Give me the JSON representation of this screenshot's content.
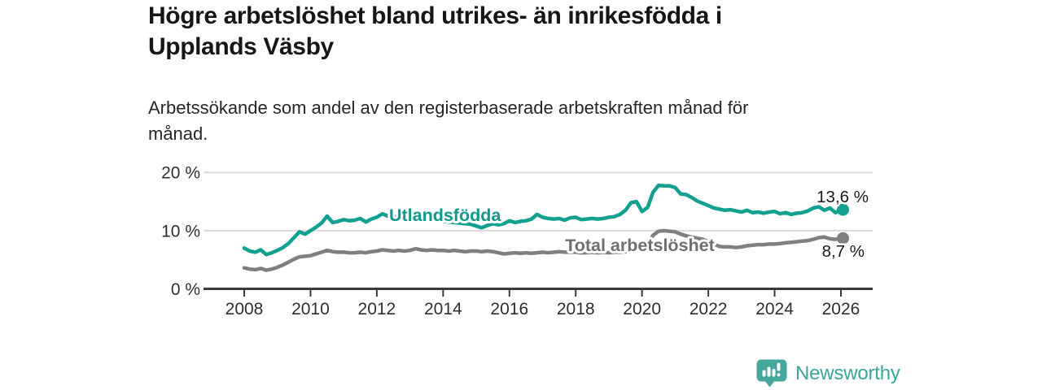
{
  "header": {
    "title_lines": [
      "Högre arbetslöshet bland utrikes- än inrikesfödda i",
      "Upplands Väsby"
    ],
    "subtitle_lines": [
      "Arbetssökande som andel av den registerbaserade arbetskraften månad för",
      "månad."
    ]
  },
  "chart_data": {
    "type": "line",
    "title": "Högre arbetslöshet bland utrikes- än inrikesfödda i Upplands Väsby",
    "subtitle": "Arbetssökande som andel av den registerbaserade arbetskraften månad för månad.",
    "grid": true,
    "legend_position": "inline-labels",
    "x_axis": {
      "min": 2008,
      "max": 2026,
      "ticks": [
        2008,
        2010,
        2012,
        2014,
        2016,
        2018,
        2020,
        2022,
        2024,
        2026
      ],
      "tick_labels": [
        "2008",
        "2010",
        "2012",
        "2014",
        "2016",
        "2018",
        "2020",
        "2022",
        "2024",
        "2026"
      ]
    },
    "y_axis": {
      "min": 0,
      "max": 20,
      "unit": "%",
      "ticks": [
        0,
        10,
        20
      ],
      "tick_labels": [
        "0 %",
        "10 %",
        "20 %"
      ]
    },
    "colors": {
      "foreign_born": "#12a08f",
      "foreign_born_label": "#0f9a8a",
      "total": "#7f7f7f",
      "total_label": "#6f6f6f",
      "grid": "#dadada",
      "axis": "#3a3a3a",
      "tick_text": "#2f2f2f",
      "end_label_text": "#1a1a1a",
      "brand_teal": "#3ba69b"
    },
    "series": [
      {
        "name": "Utlandsfödda",
        "color": "#12a08f",
        "label_color": "#0f9a8a",
        "end_label": "13,6 %",
        "end_value": 13.6,
        "label_pos": {
          "x": 2012.37,
          "y": 11.66
        },
        "x_start": 2008,
        "x_step": 0.166667,
        "values": [
          7.0,
          6.5,
          6.3,
          6.7,
          5.9,
          6.2,
          6.6,
          7.1,
          7.8,
          8.8,
          9.8,
          9.4,
          10.0,
          10.6,
          11.3,
          12.5,
          11.4,
          11.6,
          11.9,
          11.7,
          11.8,
          12.1,
          11.5,
          12.0,
          12.3,
          12.9,
          12.5,
          12.4,
          12.5,
          12.3,
          12.2,
          12.3,
          12.0,
          11.9,
          11.8,
          11.7,
          11.6,
          11.5,
          11.4,
          11.3,
          11.2,
          11.1,
          10.8,
          10.5,
          10.9,
          11.2,
          11.0,
          11.2,
          11.7,
          11.4,
          11.6,
          11.7,
          12.0,
          12.8,
          12.3,
          12.1,
          12.0,
          12.1,
          11.8,
          12.2,
          12.3,
          11.9,
          12.0,
          12.1,
          12.0,
          12.1,
          12.3,
          12.4,
          12.8,
          13.5,
          14.8,
          15.0,
          13.3,
          14.0,
          16.6,
          17.8,
          17.7,
          17.7,
          17.4,
          16.3,
          16.2,
          15.7,
          15.1,
          14.7,
          14.3,
          13.9,
          13.7,
          13.5,
          13.6,
          13.4,
          13.2,
          13.5,
          13.1,
          13.2,
          13.0,
          13.2,
          13.3,
          12.9,
          13.1,
          12.8,
          13.0,
          13.1,
          13.4,
          13.9,
          14.1,
          13.5,
          13.9,
          13.1,
          13.6
        ]
      },
      {
        "name": "Total arbetslöshet",
        "color": "#7f7f7f",
        "label_color": "#6f6f6f",
        "end_label": "8,7 %",
        "end_value": 8.7,
        "label_pos": {
          "x": 2017.68,
          "y": 6.49
        },
        "x_start": 2008,
        "x_step": 0.166667,
        "values": [
          3.6,
          3.4,
          3.3,
          3.5,
          3.2,
          3.4,
          3.7,
          4.1,
          4.6,
          5.1,
          5.5,
          5.6,
          5.7,
          6.0,
          6.3,
          6.6,
          6.4,
          6.3,
          6.3,
          6.2,
          6.2,
          6.3,
          6.2,
          6.4,
          6.5,
          6.7,
          6.6,
          6.5,
          6.6,
          6.5,
          6.6,
          6.9,
          6.7,
          6.6,
          6.7,
          6.6,
          6.6,
          6.5,
          6.6,
          6.5,
          6.4,
          6.5,
          6.5,
          6.4,
          6.5,
          6.4,
          6.2,
          6.0,
          6.1,
          6.2,
          6.1,
          6.2,
          6.1,
          6.2,
          6.3,
          6.2,
          6.3,
          6.4,
          6.3,
          6.3,
          6.3,
          6.2,
          6.2,
          6.3,
          6.2,
          6.3,
          6.2,
          6.3,
          6.3,
          6.4,
          6.5,
          6.6,
          6.8,
          7.5,
          9.2,
          9.9,
          10.0,
          9.9,
          9.8,
          9.4,
          9.1,
          8.9,
          8.7,
          8.5,
          8.1,
          7.7,
          7.3,
          7.2,
          7.2,
          7.1,
          7.2,
          7.4,
          7.5,
          7.6,
          7.6,
          7.7,
          7.7,
          7.8,
          7.9,
          8.0,
          8.1,
          8.2,
          8.3,
          8.5,
          8.8,
          8.9,
          8.6,
          8.5,
          8.7
        ]
      }
    ]
  },
  "footer": {
    "brand": "Newsworthy"
  }
}
